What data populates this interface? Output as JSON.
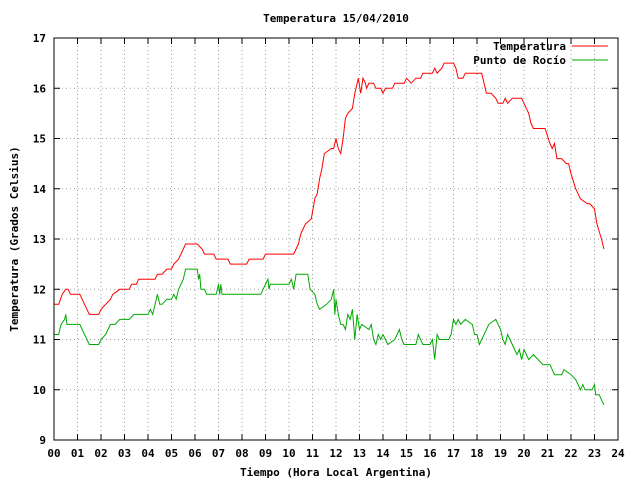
{
  "chart_data": {
    "type": "line",
    "title": "Temperatura 15/04/2010",
    "xlabel": "Tiempo (Hora Local Argentina)",
    "ylabel": "Temperatura (Grados Celsius)",
    "xlim": [
      0,
      24
    ],
    "ylim": [
      9,
      17
    ],
    "grid": true,
    "legend_position": "top-right",
    "x_tick_labels": [
      "00",
      "01",
      "02",
      "03",
      "04",
      "05",
      "06",
      "07",
      "08",
      "09",
      "10",
      "11",
      "12",
      "13",
      "14",
      "15",
      "16",
      "17",
      "18",
      "19",
      "20",
      "21",
      "22",
      "23",
      "24"
    ],
    "y_tick_labels": [
      "9",
      "10",
      "11",
      "12",
      "13",
      "14",
      "15",
      "16",
      "17"
    ],
    "series": [
      {
        "name": "Temperatura",
        "color": "#ff0000",
        "points": [
          [
            0.0,
            11.7
          ],
          [
            0.2,
            11.7
          ],
          [
            0.35,
            11.9
          ],
          [
            0.5,
            12.0
          ],
          [
            0.6,
            12.0
          ],
          [
            0.7,
            11.9
          ],
          [
            1.0,
            11.9
          ],
          [
            1.1,
            11.9
          ],
          [
            1.2,
            11.8
          ],
          [
            1.4,
            11.6
          ],
          [
            1.5,
            11.5
          ],
          [
            1.9,
            11.5
          ],
          [
            2.0,
            11.6
          ],
          [
            2.2,
            11.7
          ],
          [
            2.4,
            11.8
          ],
          [
            2.5,
            11.9
          ],
          [
            2.8,
            12.0
          ],
          [
            3.2,
            12.0
          ],
          [
            3.3,
            12.1
          ],
          [
            3.5,
            12.1
          ],
          [
            3.6,
            12.2
          ],
          [
            4.3,
            12.2
          ],
          [
            4.4,
            12.3
          ],
          [
            4.6,
            12.3
          ],
          [
            4.8,
            12.4
          ],
          [
            5.0,
            12.4
          ],
          [
            5.1,
            12.5
          ],
          [
            5.3,
            12.6
          ],
          [
            5.5,
            12.8
          ],
          [
            5.6,
            12.9
          ],
          [
            6.1,
            12.9
          ],
          [
            6.3,
            12.8
          ],
          [
            6.4,
            12.7
          ],
          [
            6.8,
            12.7
          ],
          [
            6.9,
            12.6
          ],
          [
            7.4,
            12.6
          ],
          [
            7.5,
            12.5
          ],
          [
            8.2,
            12.5
          ],
          [
            8.3,
            12.6
          ],
          [
            8.9,
            12.6
          ],
          [
            9.0,
            12.7
          ],
          [
            10.2,
            12.7
          ],
          [
            10.3,
            12.8
          ],
          [
            10.4,
            12.9
          ],
          [
            10.5,
            13.1
          ],
          [
            10.6,
            13.2
          ],
          [
            10.7,
            13.3
          ],
          [
            10.95,
            13.4
          ],
          [
            11.1,
            13.8
          ],
          [
            11.2,
            13.9
          ],
          [
            11.3,
            14.2
          ],
          [
            11.4,
            14.4
          ],
          [
            11.5,
            14.7
          ],
          [
            11.8,
            14.8
          ],
          [
            11.9,
            14.8
          ],
          [
            12.0,
            15.0
          ],
          [
            12.1,
            14.8
          ],
          [
            12.2,
            14.7
          ],
          [
            12.3,
            15.0
          ],
          [
            12.4,
            15.4
          ],
          [
            12.5,
            15.5
          ],
          [
            12.7,
            15.6
          ],
          [
            12.8,
            15.9
          ],
          [
            12.95,
            16.2
          ],
          [
            13.05,
            15.9
          ],
          [
            13.15,
            16.2
          ],
          [
            13.25,
            16.1
          ],
          [
            13.3,
            16.0
          ],
          [
            13.4,
            16.1
          ],
          [
            13.6,
            16.1
          ],
          [
            13.7,
            16.0
          ],
          [
            13.9,
            16.0
          ],
          [
            14.0,
            15.9
          ],
          [
            14.1,
            16.0
          ],
          [
            14.4,
            16.0
          ],
          [
            14.5,
            16.1
          ],
          [
            14.9,
            16.1
          ],
          [
            15.0,
            16.2
          ],
          [
            15.2,
            16.1
          ],
          [
            15.4,
            16.2
          ],
          [
            15.6,
            16.2
          ],
          [
            15.7,
            16.3
          ],
          [
            16.1,
            16.3
          ],
          [
            16.2,
            16.4
          ],
          [
            16.3,
            16.3
          ],
          [
            16.5,
            16.4
          ],
          [
            16.6,
            16.5
          ],
          [
            17.0,
            16.5
          ],
          [
            17.1,
            16.4
          ],
          [
            17.2,
            16.2
          ],
          [
            17.4,
            16.2
          ],
          [
            17.5,
            16.3
          ],
          [
            18.2,
            16.3
          ],
          [
            18.4,
            15.9
          ],
          [
            18.6,
            15.9
          ],
          [
            18.8,
            15.8
          ],
          [
            18.9,
            15.7
          ],
          [
            19.1,
            15.7
          ],
          [
            19.2,
            15.8
          ],
          [
            19.3,
            15.7
          ],
          [
            19.5,
            15.8
          ],
          [
            19.9,
            15.8
          ],
          [
            20.0,
            15.7
          ],
          [
            20.2,
            15.5
          ],
          [
            20.3,
            15.3
          ],
          [
            20.4,
            15.2
          ],
          [
            20.9,
            15.2
          ],
          [
            21.1,
            14.9
          ],
          [
            21.2,
            14.8
          ],
          [
            21.3,
            14.9
          ],
          [
            21.4,
            14.6
          ],
          [
            21.6,
            14.6
          ],
          [
            21.8,
            14.5
          ],
          [
            21.9,
            14.5
          ],
          [
            22.0,
            14.3
          ],
          [
            22.2,
            14.0
          ],
          [
            22.4,
            13.8
          ],
          [
            22.7,
            13.7
          ],
          [
            22.8,
            13.7
          ],
          [
            23.0,
            13.6
          ],
          [
            23.1,
            13.3
          ],
          [
            23.3,
            13.0
          ],
          [
            23.4,
            12.8
          ]
        ]
      },
      {
        "name": "Punto de Rocío",
        "color": "#00aa00",
        "points": [
          [
            0.0,
            11.1
          ],
          [
            0.2,
            11.1
          ],
          [
            0.3,
            11.3
          ],
          [
            0.45,
            11.4
          ],
          [
            0.5,
            11.5
          ],
          [
            0.55,
            11.3
          ],
          [
            1.1,
            11.3
          ],
          [
            1.2,
            11.2
          ],
          [
            1.4,
            11.0
          ],
          [
            1.5,
            10.9
          ],
          [
            1.9,
            10.9
          ],
          [
            2.0,
            11.0
          ],
          [
            2.2,
            11.1
          ],
          [
            2.4,
            11.3
          ],
          [
            2.6,
            11.3
          ],
          [
            2.8,
            11.4
          ],
          [
            3.2,
            11.4
          ],
          [
            3.4,
            11.5
          ],
          [
            4.0,
            11.5
          ],
          [
            4.1,
            11.6
          ],
          [
            4.2,
            11.5
          ],
          [
            4.3,
            11.7
          ],
          [
            4.4,
            11.9
          ],
          [
            4.5,
            11.7
          ],
          [
            4.6,
            11.7
          ],
          [
            4.8,
            11.8
          ],
          [
            5.0,
            11.8
          ],
          [
            5.1,
            11.9
          ],
          [
            5.2,
            11.8
          ],
          [
            5.3,
            12.0
          ],
          [
            5.5,
            12.2
          ],
          [
            5.6,
            12.4
          ],
          [
            6.1,
            12.4
          ],
          [
            6.15,
            12.2
          ],
          [
            6.2,
            12.3
          ],
          [
            6.25,
            12.0
          ],
          [
            6.4,
            12.0
          ],
          [
            6.5,
            11.9
          ],
          [
            6.9,
            11.9
          ],
          [
            7.0,
            12.1
          ],
          [
            7.05,
            11.9
          ],
          [
            7.1,
            12.1
          ],
          [
            7.15,
            11.9
          ],
          [
            8.0,
            11.9
          ],
          [
            8.8,
            11.9
          ],
          [
            8.9,
            12.0
          ],
          [
            9.0,
            12.1
          ],
          [
            9.1,
            12.2
          ],
          [
            9.15,
            12.0
          ],
          [
            9.2,
            12.1
          ],
          [
            9.6,
            12.1
          ],
          [
            9.8,
            12.1
          ],
          [
            10.0,
            12.1
          ],
          [
            10.1,
            12.2
          ],
          [
            10.2,
            12.0
          ],
          [
            10.3,
            12.3
          ],
          [
            10.8,
            12.3
          ],
          [
            10.9,
            12.0
          ],
          [
            11.1,
            11.9
          ],
          [
            11.2,
            11.7
          ],
          [
            11.3,
            11.6
          ],
          [
            11.6,
            11.7
          ],
          [
            11.8,
            11.8
          ],
          [
            11.9,
            12.0
          ],
          [
            11.95,
            11.5
          ],
          [
            12.0,
            11.8
          ],
          [
            12.1,
            11.5
          ],
          [
            12.2,
            11.3
          ],
          [
            12.3,
            11.3
          ],
          [
            12.4,
            11.2
          ],
          [
            12.5,
            11.5
          ],
          [
            12.6,
            11.4
          ],
          [
            12.7,
            11.6
          ],
          [
            12.8,
            11.0
          ],
          [
            12.9,
            11.5
          ],
          [
            13.0,
            11.2
          ],
          [
            13.1,
            11.3
          ],
          [
            13.4,
            11.2
          ],
          [
            13.5,
            11.3
          ],
          [
            13.6,
            11.0
          ],
          [
            13.7,
            10.9
          ],
          [
            13.8,
            11.1
          ],
          [
            13.9,
            11.0
          ],
          [
            14.0,
            11.1
          ],
          [
            14.1,
            11.0
          ],
          [
            14.2,
            10.9
          ],
          [
            14.5,
            11.0
          ],
          [
            14.6,
            11.1
          ],
          [
            14.7,
            11.2
          ],
          [
            14.8,
            11.0
          ],
          [
            14.9,
            10.9
          ],
          [
            15.4,
            10.9
          ],
          [
            15.5,
            11.1
          ],
          [
            15.6,
            11.0
          ],
          [
            15.7,
            10.9
          ],
          [
            16.0,
            10.9
          ],
          [
            16.1,
            11.0
          ],
          [
            16.2,
            10.6
          ],
          [
            16.3,
            11.1
          ],
          [
            16.4,
            11.0
          ],
          [
            16.8,
            11.0
          ],
          [
            16.9,
            11.1
          ],
          [
            17.0,
            11.4
          ],
          [
            17.1,
            11.3
          ],
          [
            17.2,
            11.4
          ],
          [
            17.3,
            11.3
          ],
          [
            17.5,
            11.4
          ],
          [
            17.8,
            11.3
          ],
          [
            17.9,
            11.1
          ],
          [
            18.0,
            11.1
          ],
          [
            18.1,
            10.9
          ],
          [
            18.2,
            11.0
          ],
          [
            18.5,
            11.3
          ],
          [
            18.8,
            11.4
          ],
          [
            18.9,
            11.3
          ],
          [
            19.0,
            11.2
          ],
          [
            19.1,
            11.0
          ],
          [
            19.2,
            10.9
          ],
          [
            19.3,
            11.1
          ],
          [
            19.5,
            10.9
          ],
          [
            19.6,
            10.8
          ],
          [
            19.7,
            10.7
          ],
          [
            19.8,
            10.8
          ],
          [
            19.9,
            10.6
          ],
          [
            20.0,
            10.8
          ],
          [
            20.1,
            10.7
          ],
          [
            20.2,
            10.6
          ],
          [
            20.4,
            10.7
          ],
          [
            20.6,
            10.6
          ],
          [
            20.8,
            10.5
          ],
          [
            21.1,
            10.5
          ],
          [
            21.2,
            10.4
          ],
          [
            21.3,
            10.3
          ],
          [
            21.6,
            10.3
          ],
          [
            21.7,
            10.4
          ],
          [
            22.0,
            10.3
          ],
          [
            22.2,
            10.2
          ],
          [
            22.3,
            10.1
          ],
          [
            22.4,
            10.0
          ],
          [
            22.5,
            10.1
          ],
          [
            22.6,
            10.0
          ],
          [
            22.9,
            10.0
          ],
          [
            23.0,
            10.1
          ],
          [
            23.05,
            9.9
          ],
          [
            23.2,
            9.9
          ],
          [
            23.3,
            9.8
          ],
          [
            23.4,
            9.7
          ]
        ]
      }
    ]
  }
}
